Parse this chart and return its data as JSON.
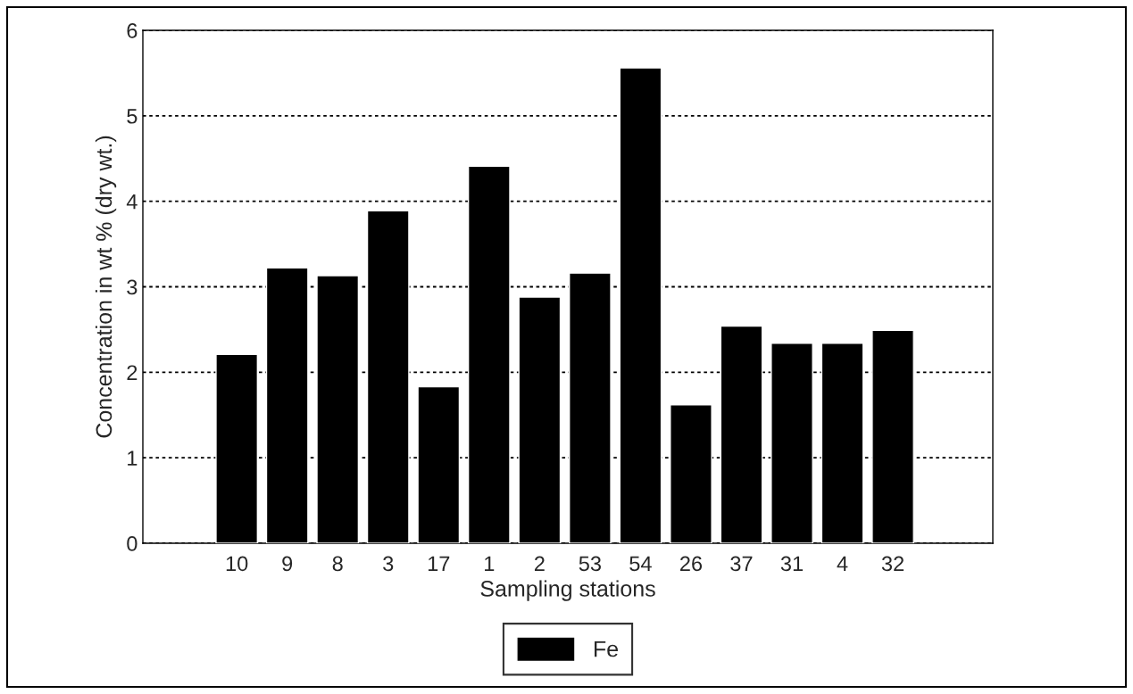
{
  "chart_data": {
    "type": "bar",
    "xlabel": "Sampling stations",
    "ylabel": "Concentration in wt % (dry wt.)",
    "categories": [
      "10",
      "9",
      "8",
      "3",
      "17",
      "1",
      "2",
      "53",
      "54",
      "26",
      "37",
      "31",
      "4",
      "32"
    ],
    "series": [
      {
        "name": "Fe",
        "color": "#000000",
        "values": [
          2.21,
          3.22,
          3.13,
          3.89,
          1.83,
          4.41,
          2.88,
          3.16,
          5.56,
          1.62,
          2.54,
          2.34,
          2.34,
          2.49
        ]
      }
    ],
    "ylim": [
      0,
      6
    ],
    "yticks": [
      0,
      1,
      2,
      3,
      4,
      5,
      6
    ],
    "grid": "y",
    "legend": "bottom"
  }
}
